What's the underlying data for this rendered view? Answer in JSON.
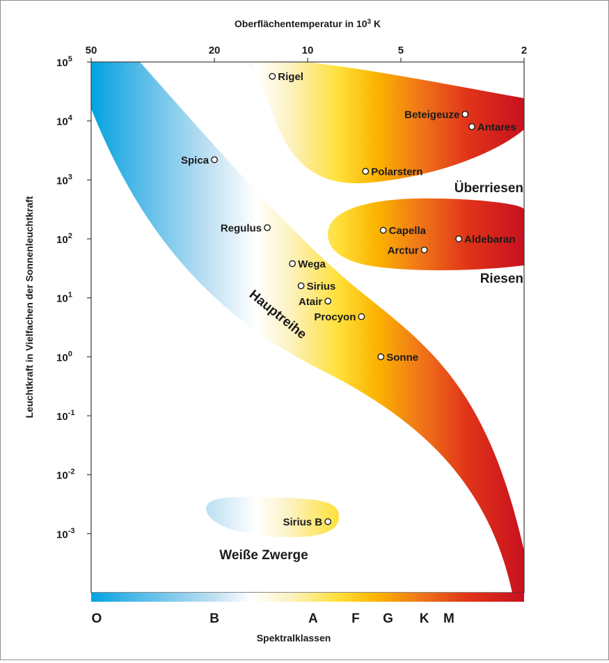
{
  "chart_data": {
    "type": "scatter",
    "title": "",
    "x_axis": {
      "label_top": "Oberflächentemperatur in 10³ K",
      "scale": "log",
      "reversed": true,
      "unit": "10³ K",
      "range": [
        50,
        2
      ],
      "ticks": [
        {
          "value": 50,
          "label": "50"
        },
        {
          "value": 20,
          "label": "20"
        },
        {
          "value": 10,
          "label": "10"
        },
        {
          "value": 5,
          "label": "5"
        },
        {
          "value": 2,
          "label": "2"
        }
      ],
      "label_bottom": "Spektralklassen",
      "spectral_classes": [
        {
          "label": "O",
          "temperature": 48
        },
        {
          "label": "B",
          "temperature": 20
        },
        {
          "label": "A",
          "temperature": 9.6
        },
        {
          "label": "F",
          "temperature": 7
        },
        {
          "label": "G",
          "temperature": 5.5
        },
        {
          "label": "K",
          "temperature": 4.2
        },
        {
          "label": "M",
          "temperature": 3.5
        }
      ]
    },
    "y_axis": {
      "label": "Leuchtkraft in Vielfachen der Sonnenleuchtkraft",
      "scale": "log",
      "range": [
        0.0001,
        100000
      ],
      "ticks": [
        {
          "value": 100000,
          "base": "10",
          "exp": "5"
        },
        {
          "value": 10000,
          "base": "10",
          "exp": "4"
        },
        {
          "value": 1000,
          "base": "10",
          "exp": "3"
        },
        {
          "value": 100,
          "base": "10",
          "exp": "2"
        },
        {
          "value": 10,
          "base": "10",
          "exp": "1"
        },
        {
          "value": 1,
          "base": "10",
          "exp": "0"
        },
        {
          "value": 0.1,
          "base": "10",
          "exp": "-1"
        },
        {
          "value": 0.01,
          "base": "10",
          "exp": "-2"
        },
        {
          "value": 0.001,
          "base": "10",
          "exp": "-3"
        }
      ]
    },
    "stars": [
      {
        "name": "Rigel",
        "temperature": 13,
        "luminosity": 57000,
        "label_side": "right"
      },
      {
        "name": "Beteigeuze",
        "temperature": 3.1,
        "luminosity": 13000,
        "label_side": "left"
      },
      {
        "name": "Antares",
        "temperature": 2.95,
        "luminosity": 8000,
        "label_side": "right"
      },
      {
        "name": "Spica",
        "temperature": 20,
        "luminosity": 2200,
        "label_side": "left"
      },
      {
        "name": "Polarstern",
        "temperature": 6.5,
        "luminosity": 1400,
        "label_side": "right"
      },
      {
        "name": "Capella",
        "temperature": 5.7,
        "luminosity": 140,
        "label_side": "right"
      },
      {
        "name": "Aldebaran",
        "temperature": 3.25,
        "luminosity": 100,
        "label_side": "right"
      },
      {
        "name": "Regulus",
        "temperature": 13.5,
        "luminosity": 155,
        "label_side": "left"
      },
      {
        "name": "Arctur",
        "temperature": 4.2,
        "luminosity": 65,
        "label_side": "left"
      },
      {
        "name": "Wega",
        "temperature": 11.2,
        "luminosity": 38,
        "label_side": "right"
      },
      {
        "name": "Sirius",
        "temperature": 10.5,
        "luminosity": 16,
        "label_side": "right"
      },
      {
        "name": "Atair",
        "temperature": 8.6,
        "luminosity": 8.8,
        "label_side": "left"
      },
      {
        "name": "Procyon",
        "temperature": 6.7,
        "luminosity": 4.8,
        "label_side": "left"
      },
      {
        "name": "Sonne",
        "temperature": 5.8,
        "luminosity": 1,
        "label_side": "right"
      },
      {
        "name": "Sirius B",
        "temperature": 8.6,
        "luminosity": 0.0016,
        "label_side": "left"
      }
    ],
    "regions": [
      {
        "name": "Überriesen"
      },
      {
        "name": "Riesen"
      },
      {
        "name": "Hauptreihe"
      },
      {
        "name": "Weiße Zwerge"
      }
    ],
    "colors": {
      "O": "#00a3e0",
      "B": "#9fd0ee",
      "A": "#fdf6d8",
      "F": "#ffd400",
      "G": "#f9b000",
      "K": "#ee6a14",
      "M": "#d8141f",
      "text": "#1a1a1a",
      "axis": "#3a3a3a"
    },
    "grid": false,
    "legend": "none"
  }
}
